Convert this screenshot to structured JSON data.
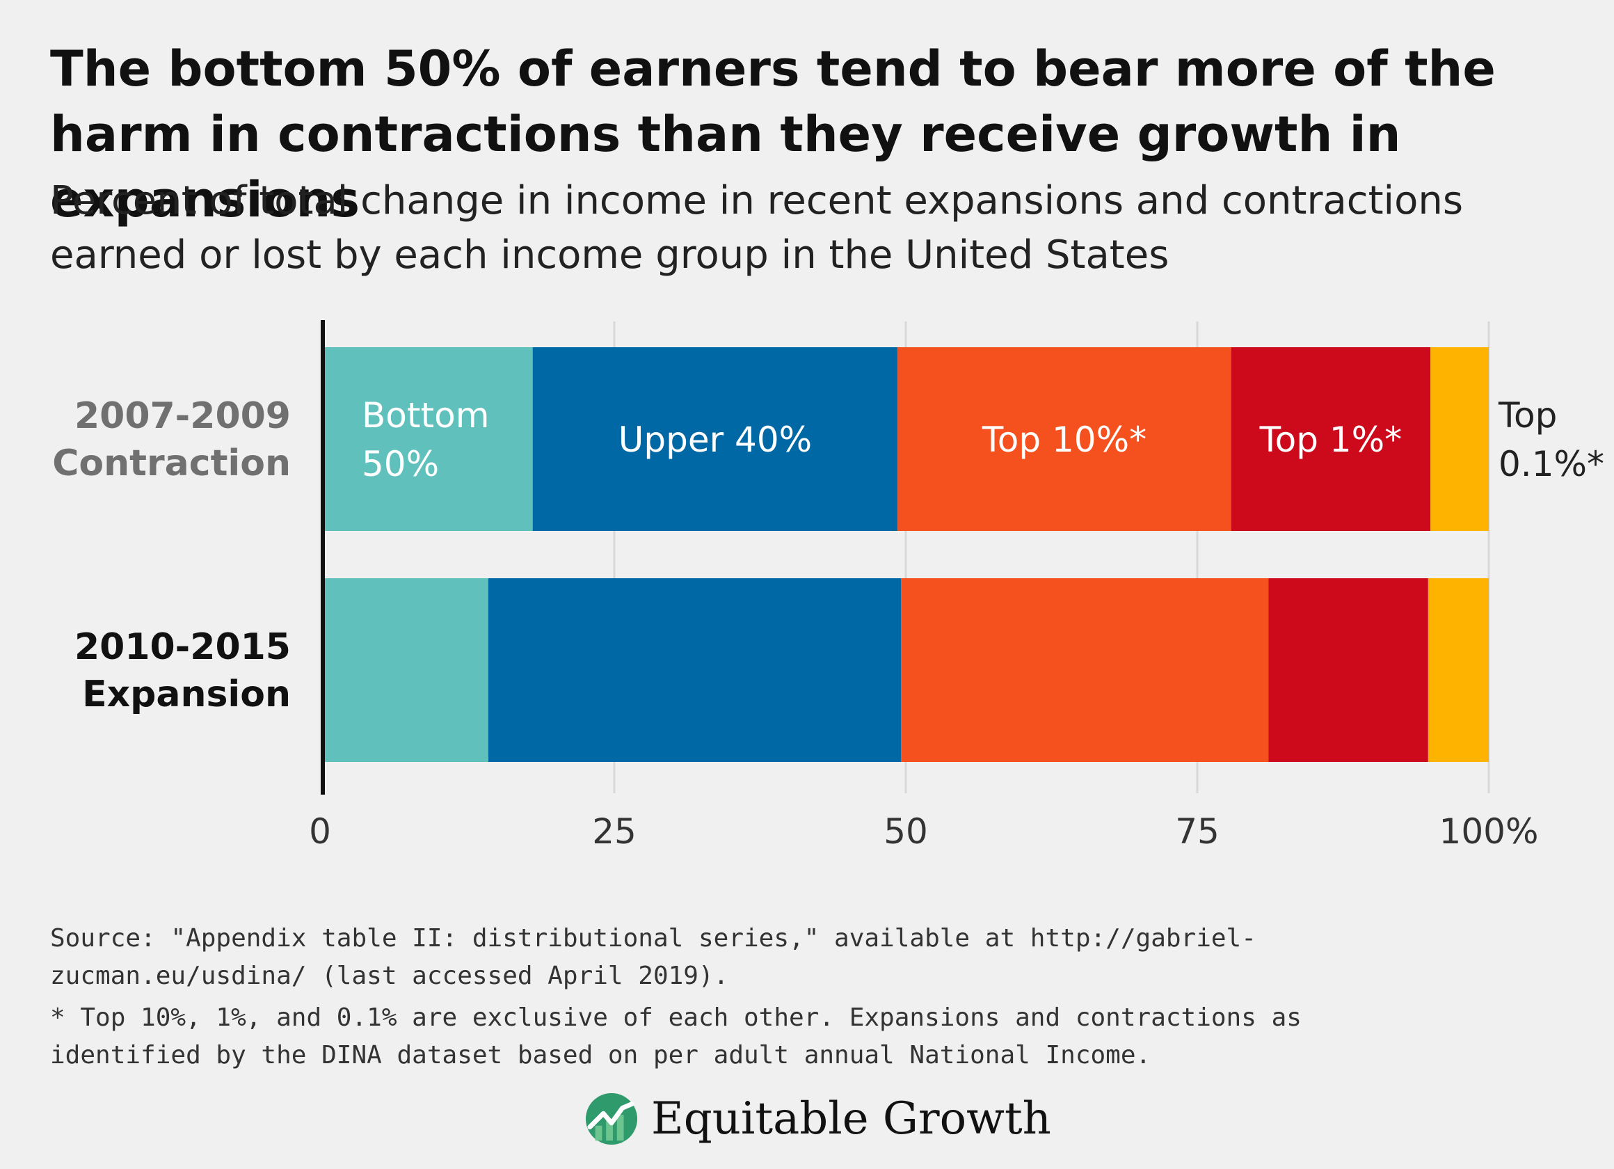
{
  "header": {
    "title": "The bottom 50% of earners tend to bear more of the harm in contractions than they receive growth in expansions",
    "subtitle": "Percent of total change in income in recent expansions and contractions earned or lost by each income group in the United States"
  },
  "chart_data": {
    "type": "bar",
    "orientation": "horizontal",
    "stacked": true,
    "categories": [
      "2007-2009 Contraction",
      "2010-2015 Expansion"
    ],
    "category_label_colors": [
      "#707070",
      "#111111"
    ],
    "series": [
      {
        "name": "Bottom 50%",
        "color": "#5fc0bc",
        "values": [
          18,
          14.2
        ]
      },
      {
        "name": "Upper 40%",
        "color": "#0068a5",
        "values": [
          31.3,
          35.4
        ]
      },
      {
        "name": "Top 10%*",
        "color": "#f5511f",
        "values": [
          28.6,
          31.5
        ]
      },
      {
        "name": "Top 1%*",
        "color": "#cc0a1c",
        "values": [
          17.1,
          13.7
        ]
      },
      {
        "name": "Top 0.1%*",
        "color": "#fdb300",
        "values": [
          5.0,
          5.2
        ]
      }
    ],
    "xaxis": {
      "ticks": [
        0,
        25,
        50,
        75,
        100
      ],
      "tick_labels": [
        "0",
        "25",
        "50",
        "75",
        "100%"
      ],
      "range": [
        0,
        100
      ]
    },
    "grid": true,
    "labels_on_category": "2007-2009 Contraction"
  },
  "footer": {
    "source": "Source: \"Appendix table II: distributional series,\" available at http://gabriel-zucman.eu/usdina/ (last accessed April 2019).",
    "note": "* Top 10%, 1%, and 0.1% are exclusive of each other. Expansions and contractions as identified by the DINA dataset based on per adult annual National Income."
  },
  "logo": {
    "text": "Equitable Growth",
    "icon": "rising-line-icon",
    "colors": [
      "#2f9a6c",
      "#6cc48f",
      "#ffffff"
    ]
  }
}
